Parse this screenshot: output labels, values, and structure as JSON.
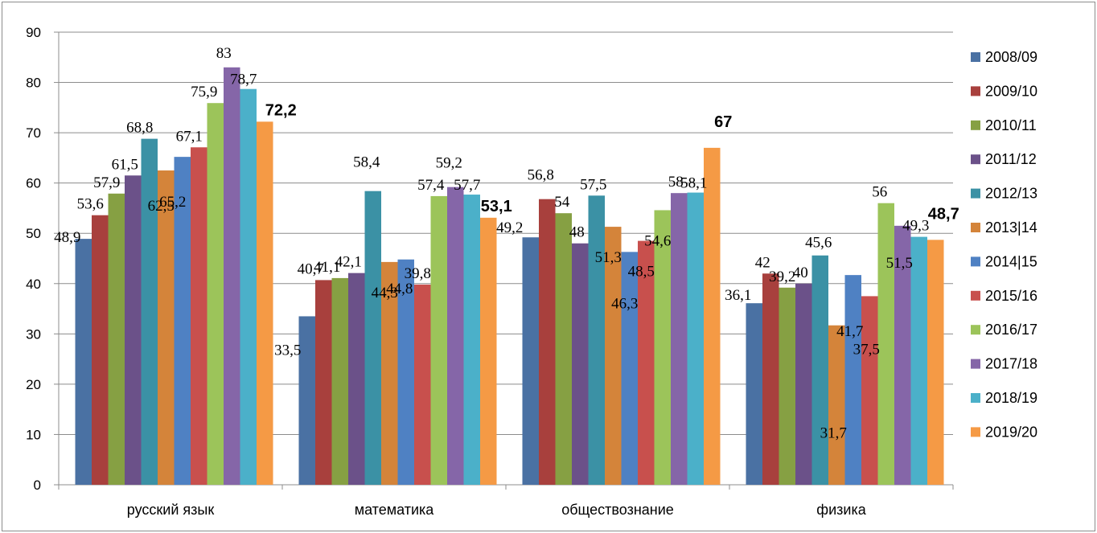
{
  "chart_data": {
    "type": "bar",
    "title": "",
    "xlabel": "",
    "ylabel": "",
    "ylim": [
      0,
      90
    ],
    "yticks": [
      0,
      10,
      20,
      30,
      40,
      50,
      60,
      70,
      80,
      90
    ],
    "grid": "horizontal",
    "legend_position": "right",
    "categories": [
      "русский язык",
      "математика",
      "обществознание",
      "физика"
    ],
    "series": [
      {
        "name": "2008/09",
        "color": "#4a71a3",
        "values": [
          48.9,
          33.5,
          49.2,
          36.1
        ]
      },
      {
        "name": "2009/10",
        "color": "#a8403d",
        "values": [
          53.6,
          40.7,
          56.8,
          42
        ]
      },
      {
        "name": "2010/11",
        "color": "#86a043",
        "values": [
          57.9,
          41.1,
          54,
          39.2
        ]
      },
      {
        "name": "2011/12",
        "color": "#6b5189",
        "values": [
          61.5,
          42.1,
          48,
          40
        ]
      },
      {
        "name": "2012/13",
        "color": "#3b91a5",
        "values": [
          68.8,
          58.4,
          57.5,
          45.6
        ]
      },
      {
        "name": "2013|14",
        "color": "#d4843a",
        "values": [
          62.5,
          44.3,
          51.3,
          31.7
        ]
      },
      {
        "name": "2014|15",
        "color": "#4f81c3",
        "values": [
          65.2,
          44.8,
          46.3,
          41.7
        ]
      },
      {
        "name": "2015/16",
        "color": "#c8504d",
        "values": [
          67.1,
          39.8,
          48.5,
          37.5
        ]
      },
      {
        "name": "2016/17",
        "color": "#9cc45a",
        "values": [
          75.9,
          57.4,
          54.6,
          56
        ]
      },
      {
        "name": "2017/18",
        "color": "#8566a8",
        "values": [
          83,
          59.2,
          58,
          51.5
        ]
      },
      {
        "name": "2018/19",
        "color": "#4bb0c9",
        "values": [
          78.7,
          57.7,
          58.1,
          49.3
        ]
      },
      {
        "name": "2019/20",
        "color": "#f59a45",
        "values": [
          72.2,
          53.1,
          67,
          48.7
        ],
        "labels_bold": true
      }
    ],
    "data_labels": [
      [
        "48,9",
        "33,5",
        "49,2",
        "36,1"
      ],
      [
        "53,6",
        "40,7",
        "56,8",
        "42"
      ],
      [
        "57,9",
        "41,1",
        "54",
        "39,2"
      ],
      [
        "61,5",
        "42,1",
        "48",
        "40"
      ],
      [
        "68,8",
        "58,4",
        "57,5",
        "45,6"
      ],
      [
        "62,5",
        "44,3",
        "51,3",
        "31,7"
      ],
      [
        "65,2",
        "44,8",
        "46,3",
        "41,7"
      ],
      [
        "67,1",
        "39,8",
        "48,5",
        "37,5"
      ],
      [
        "75,9",
        "57,4",
        "54,6",
        "56"
      ],
      [
        "83",
        "59,2",
        "58",
        "51,5"
      ],
      [
        "78,7",
        "57,7",
        "58,1",
        "49,3"
      ],
      [
        "72,2",
        "53,1",
        "67",
        "48,7"
      ]
    ]
  }
}
